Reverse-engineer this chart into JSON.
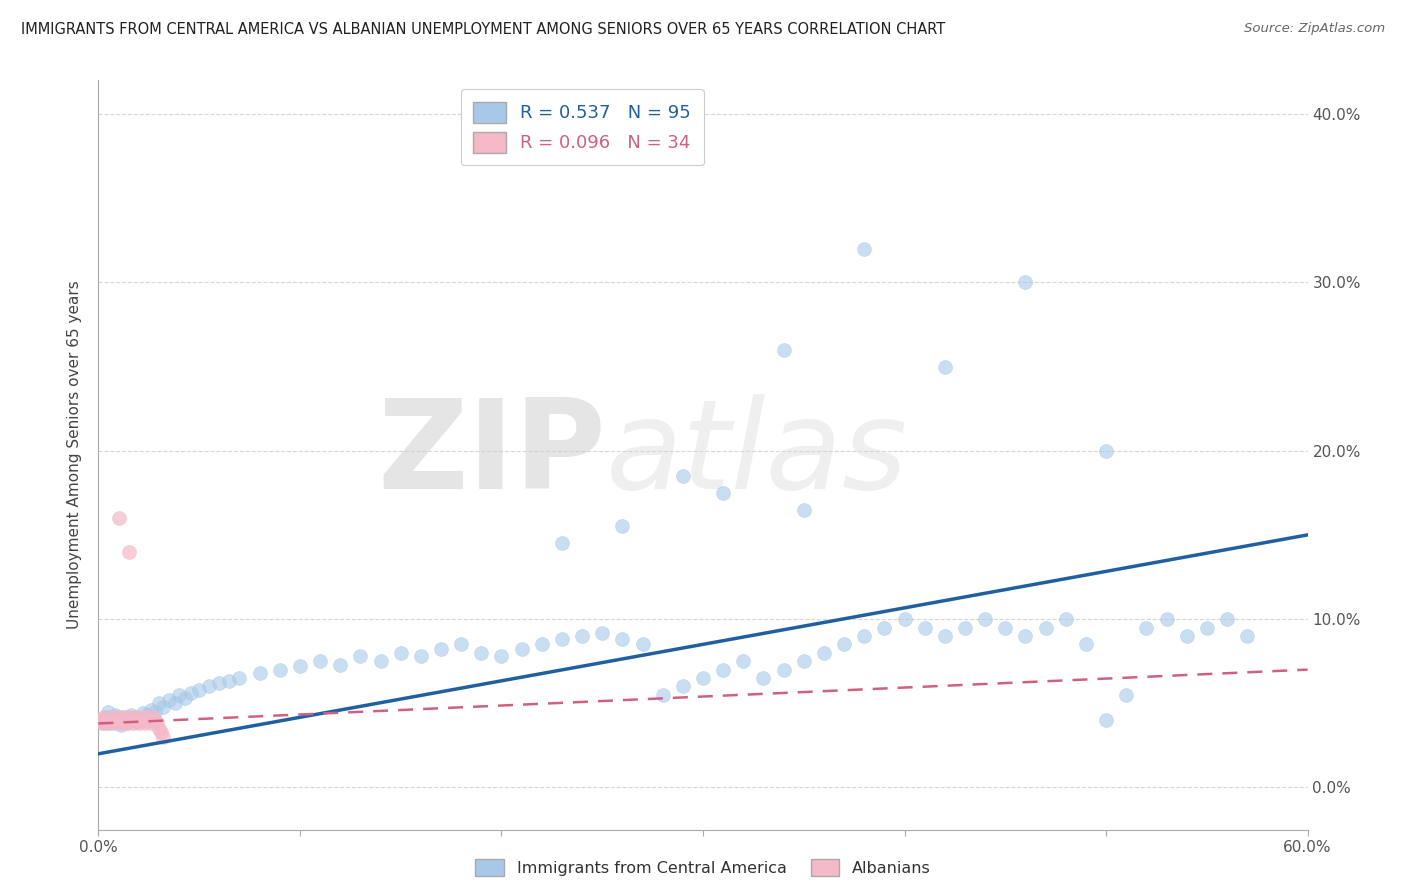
{
  "title": "IMMIGRANTS FROM CENTRAL AMERICA VS ALBANIAN UNEMPLOYMENT AMONG SENIORS OVER 65 YEARS CORRELATION CHART",
  "source": "Source: ZipAtlas.com",
  "ylabel": "Unemployment Among Seniors over 65 years",
  "blue_label": "Immigrants from Central America",
  "pink_label": "Albanians",
  "blue_R": 0.537,
  "blue_N": 95,
  "pink_R": 0.096,
  "pink_N": 34,
  "xlim": [
    0.0,
    0.6
  ],
  "ylim": [
    -0.025,
    0.42
  ],
  "background_color": "#ffffff",
  "blue_color": "#a8c8e8",
  "pink_color": "#f5b8c8",
  "blue_line_color": "#2060a0",
  "pink_line_color": "#d06080",
  "watermark_zip": "ZIP",
  "watermark_atlas": "atlas",
  "blue_x": [
    0.002,
    0.003,
    0.004,
    0.005,
    0.006,
    0.007,
    0.008,
    0.009,
    0.01,
    0.011,
    0.012,
    0.013,
    0.014,
    0.015,
    0.016,
    0.017,
    0.018,
    0.019,
    0.02,
    0.022,
    0.024,
    0.026,
    0.028,
    0.03,
    0.032,
    0.035,
    0.038,
    0.04,
    0.043,
    0.046,
    0.05,
    0.055,
    0.06,
    0.065,
    0.07,
    0.08,
    0.09,
    0.1,
    0.11,
    0.12,
    0.13,
    0.14,
    0.15,
    0.16,
    0.17,
    0.18,
    0.19,
    0.2,
    0.21,
    0.22,
    0.23,
    0.24,
    0.25,
    0.26,
    0.27,
    0.28,
    0.29,
    0.3,
    0.31,
    0.32,
    0.33,
    0.34,
    0.35,
    0.36,
    0.37,
    0.38,
    0.39,
    0.4,
    0.41,
    0.42,
    0.43,
    0.44,
    0.45,
    0.46,
    0.47,
    0.48,
    0.49,
    0.5,
    0.51,
    0.52,
    0.53,
    0.54,
    0.55,
    0.56,
    0.57,
    0.34,
    0.38,
    0.42,
    0.46,
    0.5,
    0.29,
    0.31,
    0.35,
    0.26,
    0.23
  ],
  "blue_y": [
    0.04,
    0.038,
    0.042,
    0.045,
    0.038,
    0.04,
    0.043,
    0.041,
    0.039,
    0.037,
    0.042,
    0.04,
    0.038,
    0.041,
    0.043,
    0.04,
    0.042,
    0.039,
    0.041,
    0.044,
    0.043,
    0.046,
    0.045,
    0.05,
    0.048,
    0.052,
    0.05,
    0.055,
    0.053,
    0.056,
    0.058,
    0.06,
    0.062,
    0.063,
    0.065,
    0.068,
    0.07,
    0.072,
    0.075,
    0.073,
    0.078,
    0.075,
    0.08,
    0.078,
    0.082,
    0.085,
    0.08,
    0.078,
    0.082,
    0.085,
    0.088,
    0.09,
    0.092,
    0.088,
    0.085,
    0.055,
    0.06,
    0.065,
    0.07,
    0.075,
    0.065,
    0.07,
    0.075,
    0.08,
    0.085,
    0.09,
    0.095,
    0.1,
    0.095,
    0.09,
    0.095,
    0.1,
    0.095,
    0.09,
    0.095,
    0.1,
    0.085,
    0.04,
    0.055,
    0.095,
    0.1,
    0.09,
    0.095,
    0.1,
    0.09,
    0.26,
    0.32,
    0.25,
    0.3,
    0.2,
    0.185,
    0.175,
    0.165,
    0.155,
    0.145
  ],
  "pink_x": [
    0.001,
    0.002,
    0.003,
    0.004,
    0.005,
    0.006,
    0.007,
    0.008,
    0.009,
    0.01,
    0.011,
    0.012,
    0.013,
    0.014,
    0.015,
    0.016,
    0.017,
    0.018,
    0.019,
    0.02,
    0.021,
    0.022,
    0.023,
    0.024,
    0.025,
    0.026,
    0.027,
    0.028,
    0.029,
    0.03,
    0.031,
    0.032,
    0.01,
    0.015
  ],
  "pink_y": [
    0.04,
    0.038,
    0.042,
    0.04,
    0.038,
    0.042,
    0.04,
    0.038,
    0.042,
    0.04,
    0.038,
    0.042,
    0.04,
    0.038,
    0.042,
    0.04,
    0.038,
    0.042,
    0.04,
    0.038,
    0.042,
    0.04,
    0.038,
    0.042,
    0.04,
    0.038,
    0.042,
    0.04,
    0.038,
    0.035,
    0.033,
    0.03,
    0.16,
    0.14
  ],
  "blue_trend": [
    0.0,
    0.6
  ],
  "blue_trend_y": [
    0.02,
    0.15
  ],
  "pink_trend": [
    0.0,
    0.6
  ],
  "pink_trend_y": [
    0.038,
    0.07
  ]
}
